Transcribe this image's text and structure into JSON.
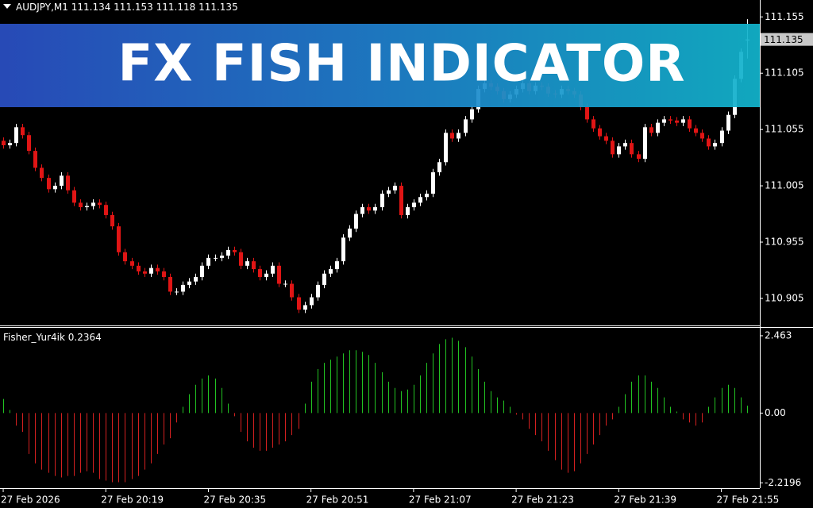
{
  "chart_data": [
    {
      "type": "candlestick",
      "symbol": "AUDJPY,M1",
      "up_color": "#ffffff",
      "down_color": "#e01515",
      "xlim": [
        -0.5,
        118
      ],
      "xticks": [
        {
          "value": 0,
          "label": "27 Feb 2026"
        },
        {
          "value": 16,
          "label": "27 Feb 20:19"
        },
        {
          "value": 32,
          "label": "27 Feb 20:35"
        },
        {
          "value": 48,
          "label": "27 Feb 20:51"
        },
        {
          "value": 64,
          "label": "27 Feb 21:07"
        },
        {
          "value": 80,
          "label": "27 Feb 21:23"
        },
        {
          "value": 96,
          "label": "27 Feb 21:39"
        },
        {
          "value": 112,
          "label": "27 Feb 21:55"
        }
      ],
      "ylim": [
        110.881,
        111.17
      ],
      "yticks": [
        111.155,
        111.105,
        111.055,
        111.005,
        110.955,
        110.905
      ],
      "open": [
        111.045,
        111.041,
        111.043,
        111.057,
        111.05,
        111.036,
        111.021,
        111.012,
        111.002,
        111.005,
        111.014,
        111.001,
        110.99,
        110.986,
        110.987,
        110.99,
        110.988,
        110.979,
        110.969,
        110.946,
        110.938,
        110.934,
        110.929,
        110.927,
        110.932,
        110.929,
        110.924,
        110.911,
        110.911,
        110.917,
        110.92,
        110.924,
        110.934,
        110.941,
        110.941,
        110.943,
        110.948,
        110.946,
        110.934,
        110.938,
        110.931,
        110.924,
        110.927,
        110.934,
        110.918,
        110.918,
        110.906,
        110.895,
        110.899,
        110.906,
        110.917,
        110.927,
        110.931,
        110.938,
        110.959,
        110.967,
        110.98,
        110.986,
        110.983,
        110.986,
        110.998,
        111.001,
        111.005,
        110.979,
        110.986,
        110.99,
        110.995,
        110.998,
        111.017,
        111.026,
        111.052,
        111.047,
        111.052,
        111.064,
        111.073,
        111.091,
        111.096,
        111.093,
        111.089,
        111.082,
        111.086,
        111.091,
        111.096,
        111.089,
        111.094,
        111.093,
        111.087,
        111.086,
        111.091,
        111.089,
        111.086,
        111.075,
        111.064,
        111.056,
        111.049,
        111.045,
        111.033,
        111.04,
        111.043,
        111.033,
        111.029,
        111.057,
        111.052,
        111.061,
        111.064,
        111.063,
        111.061,
        111.064,
        111.056,
        111.052,
        111.047,
        111.04,
        111.043,
        111.054,
        111.068,
        111.1,
        111.134
      ],
      "high": [
        111.048,
        111.046,
        111.06,
        111.06,
        111.053,
        111.039,
        111.024,
        111.015,
        111.008,
        111.017,
        111.017,
        111.004,
        110.993,
        110.99,
        110.993,
        110.993,
        110.991,
        110.982,
        110.972,
        110.949,
        110.941,
        110.937,
        110.932,
        110.935,
        110.935,
        110.932,
        110.927,
        110.914,
        110.92,
        110.923,
        110.927,
        110.937,
        110.944,
        110.944,
        110.946,
        110.951,
        110.951,
        110.949,
        110.941,
        110.941,
        110.934,
        110.93,
        110.937,
        110.937,
        110.921,
        110.921,
        110.909,
        110.902,
        110.909,
        110.92,
        110.93,
        110.934,
        110.941,
        110.962,
        110.97,
        110.983,
        110.989,
        110.989,
        110.989,
        111.001,
        111.004,
        111.008,
        111.008,
        110.989,
        110.993,
        110.998,
        111.001,
        111.02,
        111.029,
        111.055,
        111.055,
        111.055,
        111.067,
        111.076,
        111.094,
        111.099,
        111.099,
        111.096,
        111.092,
        111.089,
        111.094,
        111.099,
        111.099,
        111.097,
        111.097,
        111.096,
        111.09,
        111.094,
        111.094,
        111.092,
        111.089,
        111.078,
        111.067,
        111.059,
        111.052,
        111.048,
        111.043,
        111.046,
        111.046,
        111.036,
        111.06,
        111.06,
        111.064,
        111.067,
        111.067,
        111.066,
        111.067,
        111.067,
        111.059,
        111.055,
        111.05,
        111.046,
        111.057,
        111.071,
        111.103,
        111.127,
        111.153
      ],
      "low": [
        111.038,
        111.038,
        111.04,
        111.047,
        111.033,
        111.018,
        111.009,
        110.999,
        110.999,
        111.002,
        110.998,
        110.987,
        110.983,
        110.983,
        110.984,
        110.985,
        110.976,
        110.966,
        110.943,
        110.935,
        110.931,
        110.926,
        110.924,
        110.924,
        110.926,
        110.921,
        110.908,
        110.908,
        110.908,
        110.914,
        110.917,
        110.921,
        110.931,
        110.938,
        110.938,
        110.94,
        110.943,
        110.931,
        110.931,
        110.928,
        110.921,
        110.921,
        110.924,
        110.915,
        110.915,
        110.903,
        110.892,
        110.892,
        110.896,
        110.903,
        110.914,
        110.924,
        110.928,
        110.935,
        110.956,
        110.964,
        110.977,
        110.98,
        110.98,
        110.983,
        110.995,
        110.998,
        110.976,
        110.976,
        110.983,
        110.987,
        110.992,
        110.995,
        111.014,
        111.023,
        111.044,
        111.044,
        111.049,
        111.061,
        111.07,
        111.088,
        111.09,
        111.086,
        111.079,
        111.079,
        111.083,
        111.088,
        111.086,
        111.086,
        111.09,
        111.084,
        111.083,
        111.083,
        111.086,
        111.083,
        111.072,
        111.061,
        111.053,
        111.046,
        111.042,
        111.03,
        111.03,
        111.037,
        111.03,
        111.026,
        111.026,
        111.049,
        111.049,
        111.058,
        111.06,
        111.058,
        111.058,
        111.053,
        111.049,
        111.044,
        111.037,
        111.037,
        111.04,
        111.051,
        111.065,
        111.097,
        111.118
      ],
      "close": [
        111.041,
        111.043,
        111.057,
        111.05,
        111.036,
        111.021,
        111.012,
        111.002,
        111.005,
        111.014,
        111.001,
        110.99,
        110.986,
        110.987,
        110.99,
        110.988,
        110.979,
        110.969,
        110.946,
        110.938,
        110.934,
        110.929,
        110.927,
        110.932,
        110.929,
        110.924,
        110.911,
        110.911,
        110.917,
        110.92,
        110.924,
        110.934,
        110.941,
        110.941,
        110.943,
        110.948,
        110.946,
        110.934,
        110.938,
        110.931,
        110.924,
        110.927,
        110.934,
        110.918,
        110.918,
        110.906,
        110.895,
        110.899,
        110.906,
        110.917,
        110.927,
        110.931,
        110.938,
        110.959,
        110.967,
        110.98,
        110.986,
        110.983,
        110.986,
        110.998,
        111.001,
        111.005,
        110.979,
        110.986,
        110.99,
        110.995,
        110.998,
        111.017,
        111.026,
        111.052,
        111.047,
        111.052,
        111.064,
        111.073,
        111.091,
        111.096,
        111.093,
        111.089,
        111.082,
        111.086,
        111.091,
        111.096,
        111.089,
        111.094,
        111.093,
        111.087,
        111.086,
        111.091,
        111.089,
        111.086,
        111.075,
        111.064,
        111.056,
        111.049,
        111.045,
        111.033,
        111.04,
        111.043,
        111.033,
        111.029,
        111.057,
        111.052,
        111.061,
        111.064,
        111.063,
        111.061,
        111.064,
        111.056,
        111.052,
        111.047,
        111.04,
        111.043,
        111.054,
        111.068,
        111.1,
        111.124,
        111.135
      ]
    },
    {
      "type": "bar",
      "name": "Fisher_Yur4ik",
      "up_color": "#22c322",
      "down_color": "#d42020",
      "xlim": [
        -0.5,
        118
      ],
      "ylim": [
        -2.39,
        2.74
      ],
      "yticks": [
        2.463,
        {
          "value": 0,
          "label": "0.00"
        },
        -2.2196
      ],
      "values": [
        0.45,
        0.1,
        -0.4,
        -0.6,
        -1.3,
        -1.6,
        -1.8,
        -1.9,
        -2.0,
        -2.05,
        -2.0,
        -2.0,
        -1.9,
        -1.85,
        -1.9,
        -2.1,
        -2.15,
        -2.2,
        -2.2,
        -2.2,
        -2.1,
        -2.0,
        -1.8,
        -1.6,
        -1.3,
        -1.0,
        -0.8,
        -0.3,
        0.2,
        0.6,
        0.9,
        1.1,
        1.2,
        1.1,
        0.8,
        0.3,
        -0.1,
        -0.6,
        -0.9,
        -1.1,
        -1.2,
        -1.2,
        -1.1,
        -1.0,
        -0.9,
        -0.7,
        -0.5,
        0.3,
        1.0,
        1.4,
        1.6,
        1.7,
        1.8,
        1.9,
        2.0,
        2.0,
        1.95,
        1.85,
        1.6,
        1.3,
        1.0,
        0.8,
        0.7,
        0.75,
        0.9,
        1.2,
        1.6,
        1.9,
        2.2,
        2.35,
        2.4,
        2.3,
        2.1,
        1.8,
        1.4,
        1.0,
        0.7,
        0.5,
        0.4,
        0.2,
        -0.05,
        -0.2,
        -0.5,
        -0.7,
        -0.9,
        -1.2,
        -1.5,
        -1.8,
        -1.9,
        -1.85,
        -1.6,
        -1.3,
        -1.0,
        -0.7,
        -0.4,
        -0.2,
        0.2,
        0.6,
        1.0,
        1.2,
        1.2,
        1.0,
        0.8,
        0.5,
        0.2,
        0.05,
        -0.2,
        -0.3,
        -0.4,
        -0.3,
        0.2,
        0.5,
        0.8,
        0.9,
        0.8,
        0.5,
        0.2364
      ]
    }
  ],
  "banner": {
    "title": "FX FISH INDICATOR"
  }
}
